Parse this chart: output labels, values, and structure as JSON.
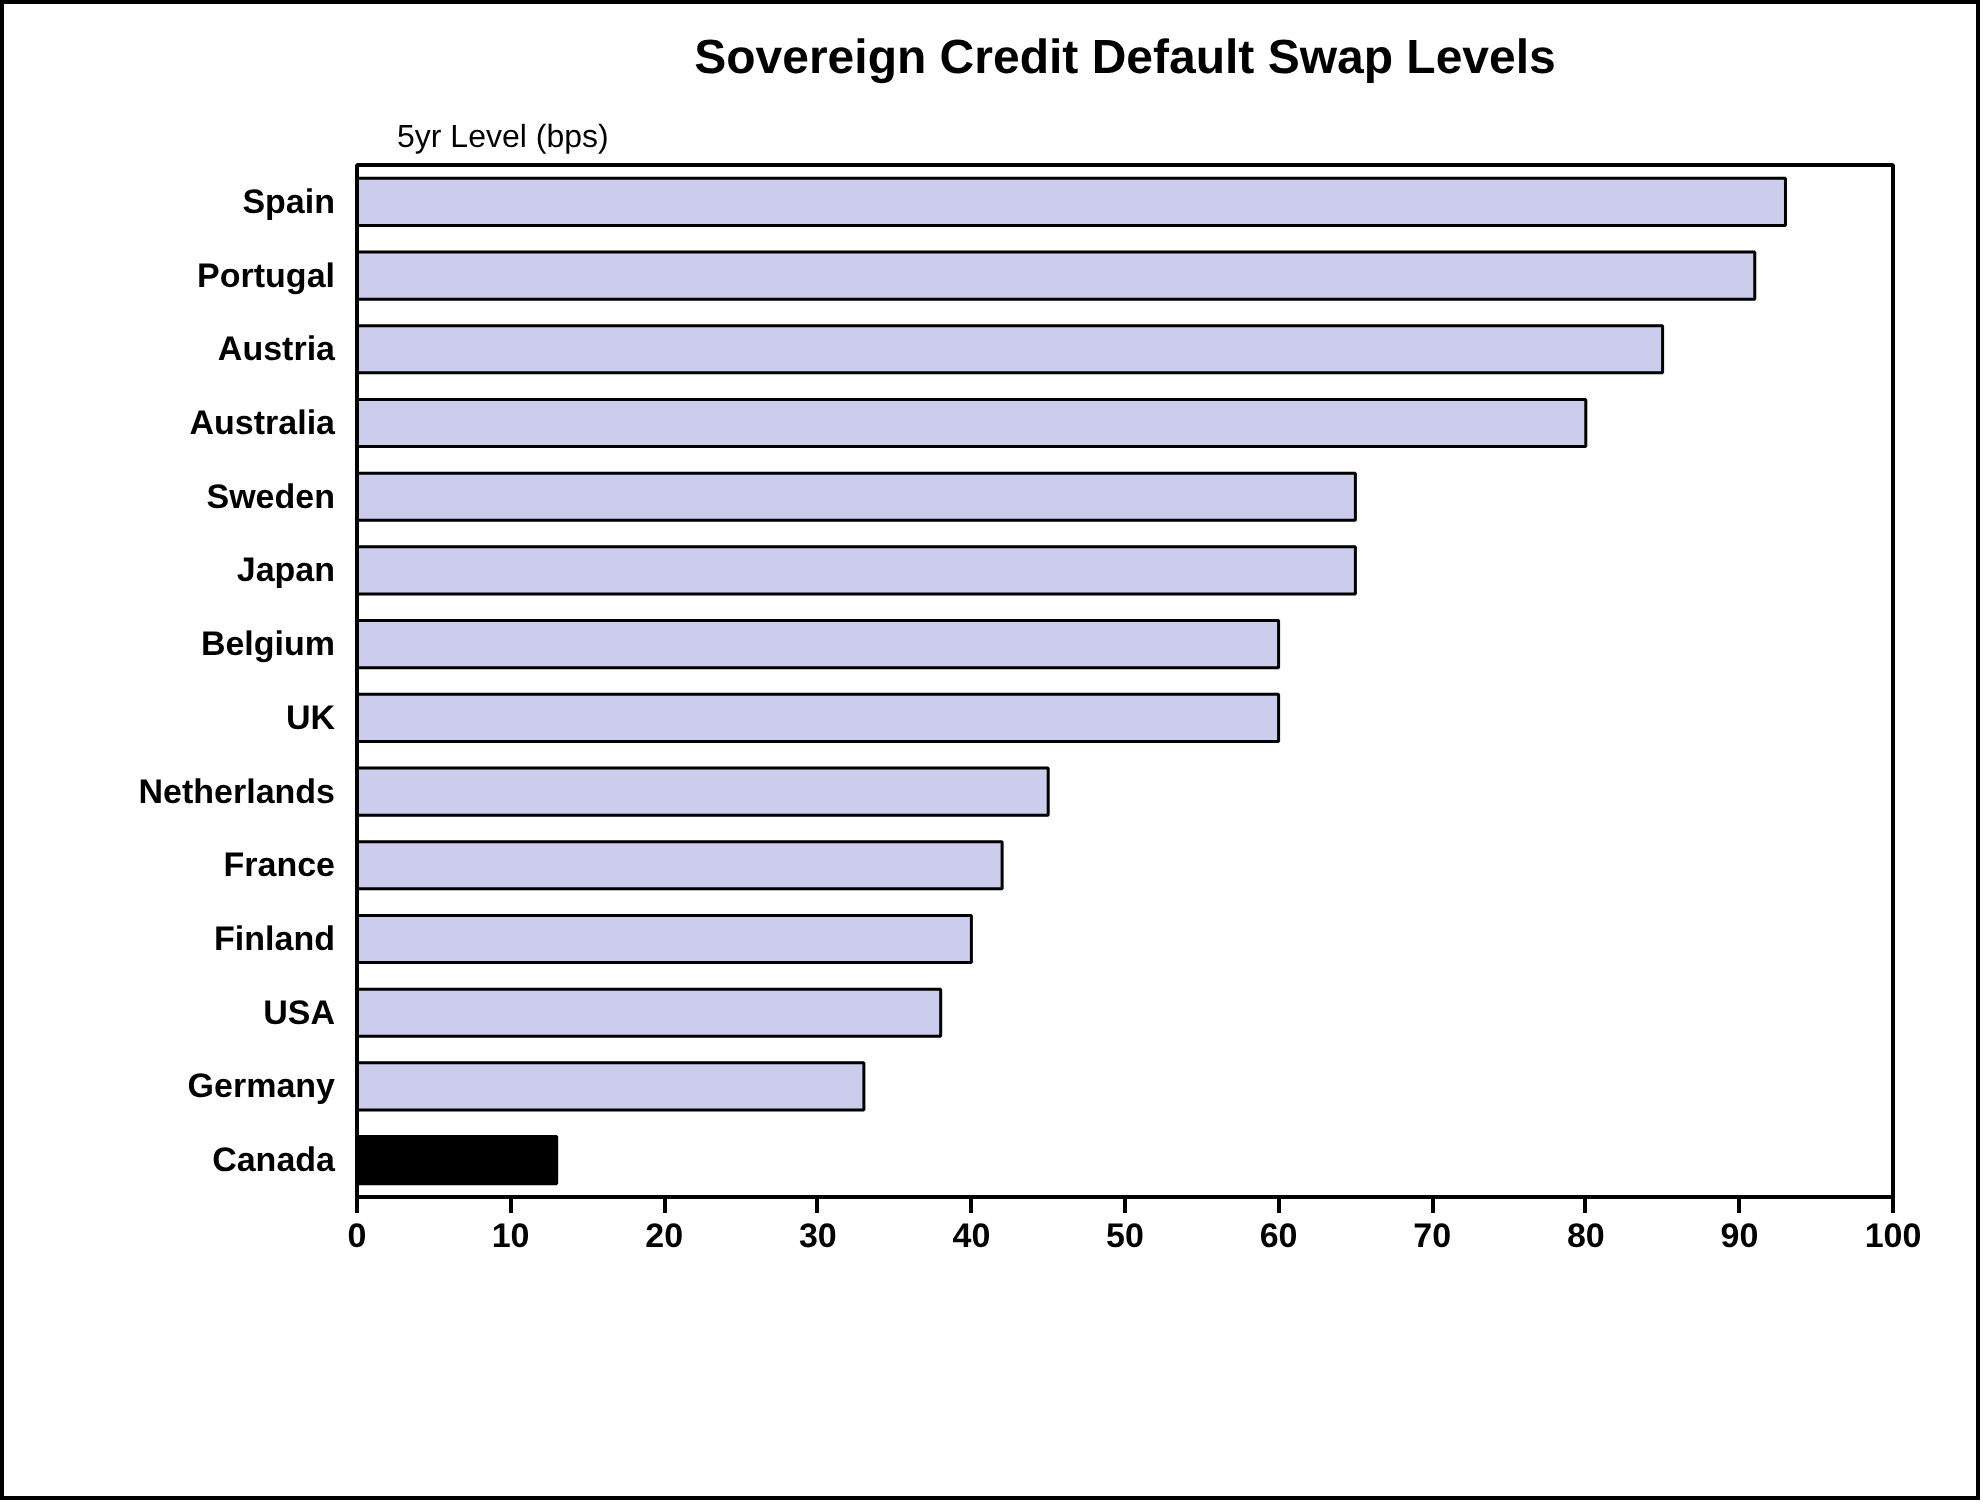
{
  "chart_data": {
    "type": "bar",
    "orientation": "horizontal",
    "title": "Sovereign Credit Default Swap Levels",
    "xlabel": "5yr Level (bps)",
    "categories": [
      "Spain",
      "Portugal",
      "Austria",
      "Australia",
      "Sweden",
      "Japan",
      "Belgium",
      "UK",
      "Netherlands",
      "France",
      "Finland",
      "USA",
      "Germany",
      "Canada"
    ],
    "values": [
      93,
      91,
      85,
      80,
      65,
      65,
      60,
      60,
      45,
      42,
      40,
      38,
      33,
      13
    ],
    "colors": [
      "#ccccec",
      "#ccccec",
      "#ccccec",
      "#ccccec",
      "#ccccec",
      "#ccccec",
      "#ccccec",
      "#ccccec",
      "#ccccec",
      "#ccccec",
      "#ccccec",
      "#ccccec",
      "#ccccec",
      "#000000"
    ],
    "xlim": [
      0,
      100
    ],
    "xticks": [
      0,
      10,
      20,
      30,
      40,
      50,
      60,
      70,
      80,
      90,
      100
    ],
    "grid": false
  }
}
